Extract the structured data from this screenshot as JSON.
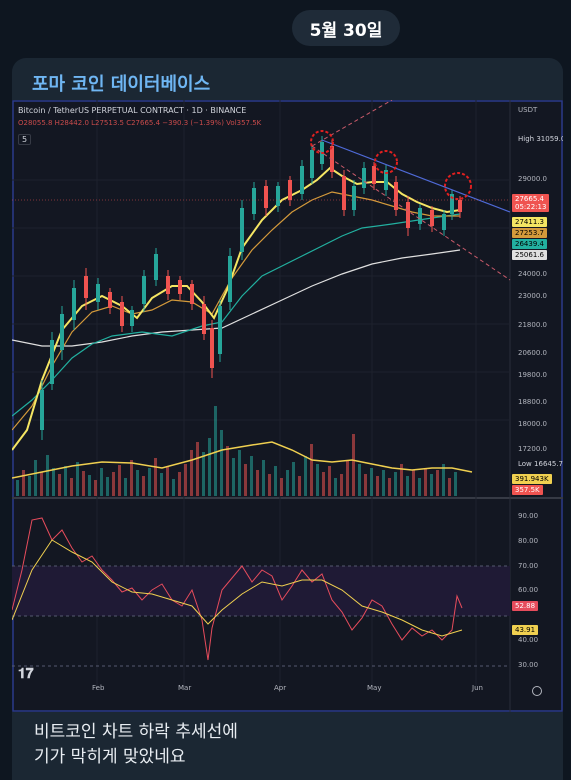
{
  "header": {
    "date": "5월 30일"
  },
  "card": {
    "channel_name": "포마 코인 데이터베이스",
    "caption_lines": [
      "비트코인 차트 하락 추세선에",
      "기가 막히게 맞았네요"
    ]
  },
  "chart": {
    "title": "Bitcoin / TetherUS PERPETUAL CONTRACT · 1D · BINANCE",
    "ohlc": "O28055.8 H28442.0 L27513.5 C27665.4 −390.3 (−1.39%) Vol357.5K",
    "indicator_toggle": "5",
    "currency": "USDT",
    "price_axis": [
      "31059.0",
      "29000.0",
      "27665.4",
      "27411.3",
      "27253.7",
      "26439.4",
      "25061.6",
      "24000.0",
      "23000.0",
      "21800.0",
      "20600.0",
      "19800.0",
      "18800.0",
      "18000.0",
      "17200.0",
      "16645.7"
    ],
    "high_label": "High",
    "high_value": "31059.0",
    "low_label": "Low",
    "low_value": "16645.7",
    "last_price": "27665.4",
    "countdown": "05:22:13",
    "volume_labels": [
      "391.943K",
      "357.5K"
    ],
    "rsi_axis": [
      "90.00",
      "80.00",
      "70.00",
      "60.00",
      "52.88",
      "43.91",
      "40.00",
      "30.00"
    ],
    "rsi_value": "52.88",
    "rsi_ma_value": "43.91",
    "x_axis": [
      "Feb",
      "Mar",
      "Apr",
      "May",
      "Jun"
    ],
    "colors": {
      "up": "#26a69a",
      "down": "#ef5350",
      "ma_fast": "#f5e663",
      "ma_mid": "#d49a3b",
      "ma_slow": "#22b0a0",
      "ma_long": "#e0e0e0",
      "rsi": "#e64c5c",
      "rsi_ma": "#f0d050"
    }
  }
}
